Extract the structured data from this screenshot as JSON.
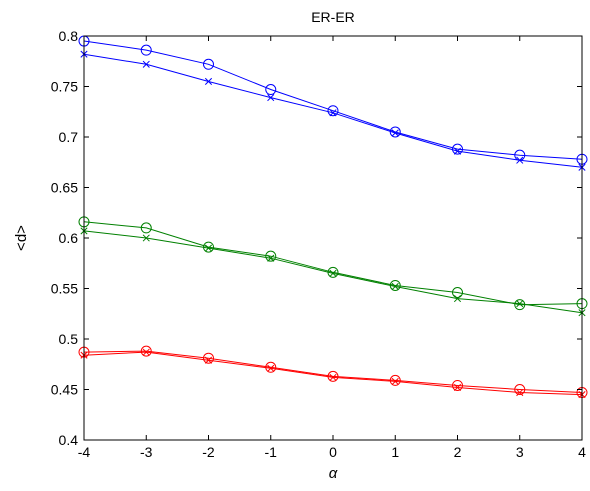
{
  "chart_data": {
    "type": "line",
    "title": "ER-ER",
    "xlabel": "α",
    "ylabel": "<d>",
    "xlim": [
      -4,
      4
    ],
    "ylim": [
      0.4,
      0.8
    ],
    "xticks": [
      -4,
      -3,
      -2,
      -1,
      0,
      1,
      2,
      3,
      4
    ],
    "xtick_labels": [
      "-4",
      "-3",
      "-2",
      "-1",
      "0",
      "1",
      "2",
      "3",
      "4"
    ],
    "yticks": [
      0.4,
      0.45,
      0.5,
      0.55,
      0.6,
      0.65,
      0.7,
      0.75,
      0.8
    ],
    "ytick_labels": [
      "0.4",
      "0.45",
      "0.5",
      "0.55",
      "0.6",
      "0.65",
      "0.7",
      "0.75",
      "0.8"
    ],
    "grid": false,
    "legend": "none",
    "x": [
      -4,
      -3,
      -2,
      -1,
      0,
      1,
      2,
      3,
      4
    ],
    "series": [
      {
        "color": "#0000ff",
        "marker": "circle",
        "values": [
          0.795,
          0.786,
          0.772,
          0.747,
          0.726,
          0.705,
          0.688,
          0.682,
          0.678
        ]
      },
      {
        "color": "#0000ff",
        "marker": "x",
        "values": [
          0.782,
          0.772,
          0.755,
          0.739,
          0.724,
          0.704,
          0.686,
          0.677,
          0.67
        ]
      },
      {
        "color": "#008000",
        "marker": "circle",
        "values": [
          0.616,
          0.61,
          0.591,
          0.582,
          0.566,
          0.553,
          0.546,
          0.534,
          0.535
        ]
      },
      {
        "color": "#008000",
        "marker": "x",
        "values": [
          0.607,
          0.6,
          0.59,
          0.58,
          0.565,
          0.552,
          0.54,
          0.535,
          0.526
        ]
      },
      {
        "color": "#ff0000",
        "marker": "circle",
        "values": [
          0.487,
          0.488,
          0.481,
          0.472,
          0.463,
          0.459,
          0.454,
          0.45,
          0.447
        ]
      },
      {
        "color": "#ff0000",
        "marker": "x",
        "values": [
          0.484,
          0.487,
          0.479,
          0.471,
          0.462,
          0.458,
          0.452,
          0.447,
          0.445
        ]
      }
    ]
  }
}
